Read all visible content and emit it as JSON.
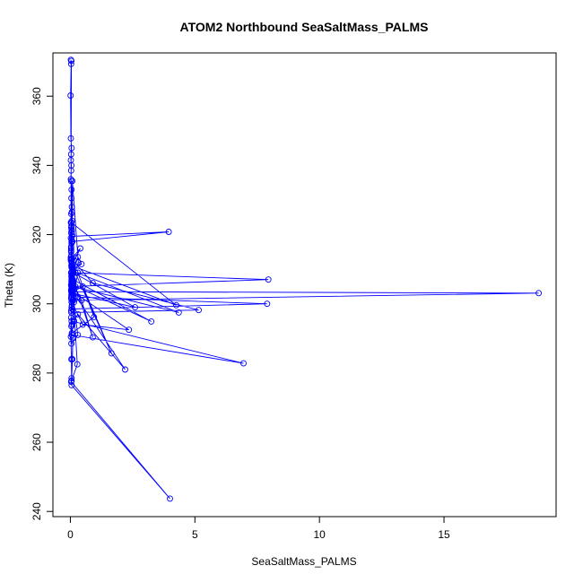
{
  "chart_data": {
    "type": "line",
    "title": "ATOM2 Northbound SeaSaltMass_PALMS",
    "xlabel": "SeaSaltMass_PALMS",
    "ylabel": "Theta (K)",
    "xlim": [
      -0.7,
      19.5
    ],
    "ylim": [
      238.5,
      372.5
    ],
    "xticks": [
      0,
      5,
      10,
      15
    ],
    "yticks": [
      240,
      260,
      280,
      300,
      320,
      340,
      360
    ],
    "grid": false,
    "legend": "none",
    "marker": "open-circle",
    "color": "#0000ff",
    "series": [
      {
        "x": [
          0.02,
          0.03,
          0.01,
          0.02,
          0.05,
          0.03,
          0.02,
          0.04,
          0.03,
          0.02,
          0.03,
          0.05,
          0.04,
          0.06,
          0.03,
          0.02,
          0.04,
          0.07,
          0.05,
          0.03,
          0.06,
          0.09,
          0.12,
          0.08,
          0.05,
          0.03,
          0.04,
          0.06,
          0.05,
          0.04,
          0.03,
          0.02,
          0.05,
          0.07,
          0.06,
          0.04,
          0.03,
          0.05,
          0.03,
          0.02,
          0.04,
          0.06,
          3.95,
          0.08,
          0.05,
          0.04,
          0.06,
          0.08,
          0.32,
          0.06,
          0.1,
          0.12,
          0.05,
          0.04,
          0.07,
          0.06,
          0.04,
          7.95,
          0.08,
          0.05,
          0.03,
          0.04,
          0.06,
          0.05,
          7.9,
          0.08,
          0.06,
          0.04,
          0.03,
          0.05,
          0.06,
          0.04,
          0.02,
          0.03,
          0.05,
          0.06,
          0.04,
          4.25,
          0.06,
          0.04,
          0.03,
          0.05,
          0.3,
          0.45,
          0.08,
          0.06,
          0.12,
          0.04,
          0.05,
          0.08,
          0.06,
          0.04,
          18.8,
          0.08,
          0.06,
          0.04,
          5.15,
          0.9,
          0.05,
          0.4,
          0.06,
          0.08,
          4.35,
          0.1,
          0.07,
          0.3,
          0.04,
          0.05,
          6.95,
          0.06,
          0.04,
          0.03,
          0.06,
          0.15,
          0.06,
          0.12,
          2.6,
          0.08,
          0.1,
          3.25,
          0.08,
          0.2,
          2.35,
          0.5,
          0.05,
          0.3,
          0.06,
          0.2,
          1.65,
          0.5,
          0.1,
          2.2,
          0.3,
          0.15,
          0.06,
          0.95,
          0.3,
          0.2,
          0.9,
          0.45,
          0.08,
          0.28,
          0.05,
          0.08,
          0.1,
          0.05,
          0.03,
          4.0,
          0.05,
          0.04,
          0.02,
          0.03,
          0.02,
          0.04
        ],
        "y": [
          370.5,
          369.3,
          360.2,
          347.8,
          345.0,
          343.2,
          341.5,
          340.0,
          338.5,
          336.0,
          335.5,
          333.0,
          330.5,
          328.0,
          326.0,
          323.5,
          322.0,
          320.0,
          317.5,
          315.0,
          313.0,
          311.0,
          310.0,
          308.5,
          307.0,
          305.5,
          306.5,
          308.0,
          311.5,
          314.0,
          316.5,
          319.0,
          321.5,
          324.0,
          326.5,
          322.5,
          320.5,
          318.0,
          315.5,
          312.5,
          322.0,
          319.5,
          320.8,
          318.0,
          310.5,
          308.0,
          304.5,
          335.5,
          312.0,
          306.0,
          303.0,
          301.0,
          299.0,
          302.5,
          304.0,
          306.5,
          309.0,
          307.0,
          305.0,
          303.0,
          301.5,
          303.5,
          305.0,
          302.0,
          300.0,
          298.5,
          300.5,
          302.0,
          304.0,
          306.0,
          308.5,
          311.0,
          313.5,
          316.0,
          318.5,
          321.0,
          323.5,
          299.6,
          311.0,
          313.0,
          309.0,
          307.5,
          313.5,
          311.5,
          310.0,
          308.0,
          306.5,
          305.0,
          304.5,
          306.0,
          304.5,
          303.5,
          303.1,
          301.0,
          299.5,
          297.5,
          298.2,
          306.0,
          313.0,
          316.0,
          311.0,
          309.5,
          297.5,
          305.0,
          303.5,
          291.0,
          288.5,
          295.0,
          282.8,
          291.0,
          293.5,
          296.0,
          294.0,
          300.5,
          307.0,
          309.0,
          299.0,
          303.0,
          307.0,
          294.9,
          305.5,
          303.0,
          292.5,
          294.0,
          300.5,
          302.0,
          312.0,
          309.0,
          285.7,
          305.0,
          303.5,
          281.0,
          297.0,
          295.0,
          291.5,
          296.2,
          309.0,
          305.0,
          290.3,
          301.0,
          306.0,
          282.5,
          277.8,
          284.0,
          290.0,
          278.5,
          277.5,
          243.7,
          276.5,
          284.0,
          290.5,
          298.0,
          313.0,
          370.2
        ]
      }
    ]
  }
}
